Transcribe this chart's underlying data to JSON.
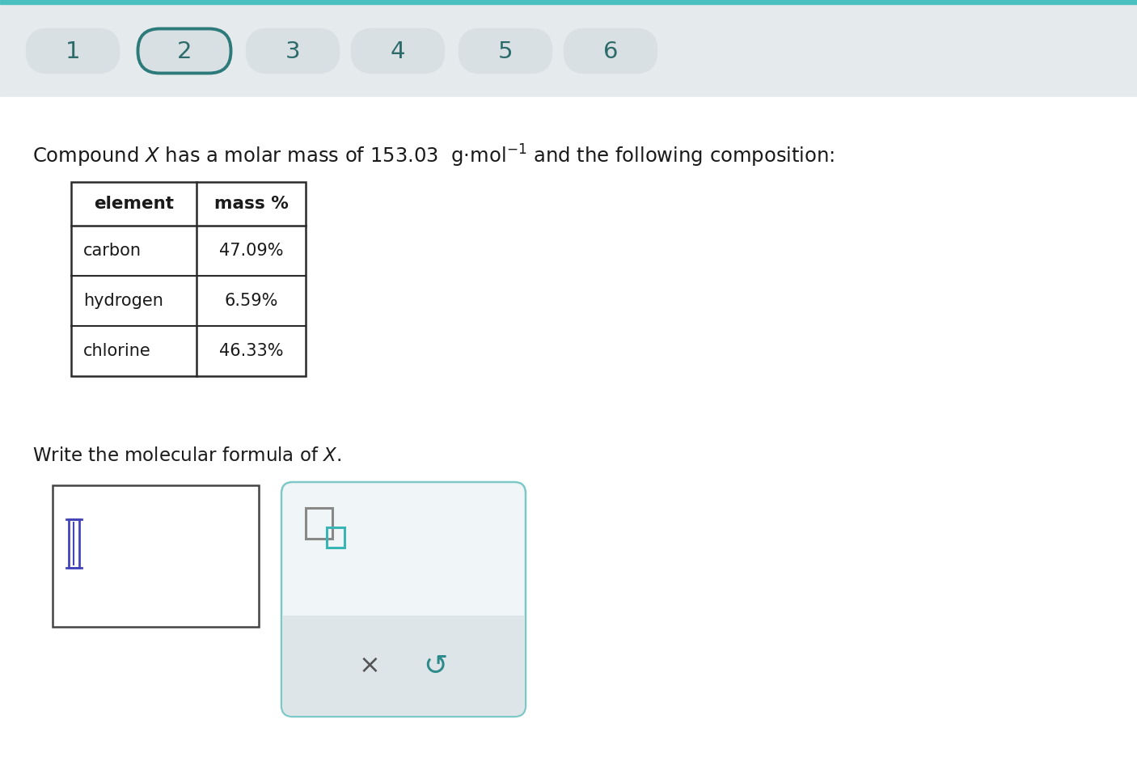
{
  "bg_color": "#e8eef0",
  "content_bg": "#ffffff",
  "header_bar_color": "#e5eaec",
  "teal_color": "#2d7a7a",
  "teal_light": "#3ab5b5",
  "step_numbers": [
    "1",
    "2",
    "3",
    "4",
    "5",
    "6"
  ],
  "active_step": 1,
  "step_pill_color": "#d8e0e3",
  "step_pill_border": "#2d7a7a",
  "step_text_color": "#2d6b6b",
  "table_headers": [
    "element",
    "mass %"
  ],
  "table_rows": [
    [
      "carbon",
      "47.09%"
    ],
    [
      "hydrogen",
      "6.59%"
    ],
    [
      "chlorine",
      "46.33%"
    ]
  ],
  "input_box_border": "#444444",
  "panel_bg": "#f0f5f7",
  "panel_border": "#7ec8c8",
  "panel_button_bg": "#dde5e8",
  "x_button_color": "#555555",
  "undo_color": "#2d8a8a",
  "cursor_color": "#4444bb",
  "top_bar_teal": "#4abfbf"
}
